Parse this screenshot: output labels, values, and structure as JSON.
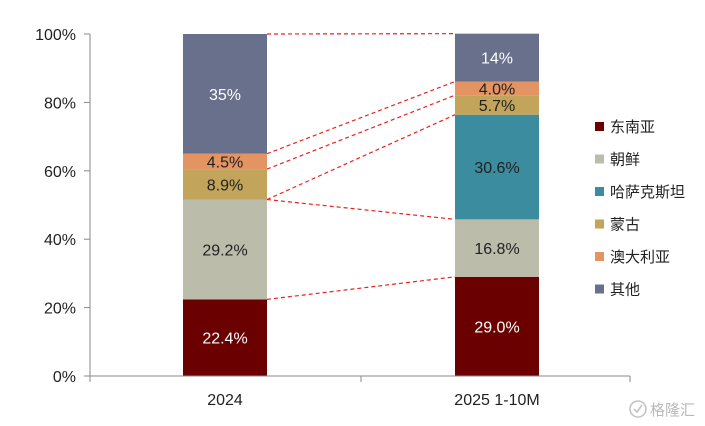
{
  "chart_data": {
    "type": "bar",
    "stacked": true,
    "percent": true,
    "categories": [
      "2024",
      "2025 1-10M"
    ],
    "ylim": [
      0,
      100
    ],
    "yticks": [
      "0%",
      "20%",
      "40%",
      "60%",
      "80%",
      "100%"
    ],
    "series": [
      {
        "name": "东南亚",
        "color": "#6b0000",
        "label_color": "#ffffff",
        "values": [
          22.4,
          29.0
        ],
        "labels": [
          "22.4%",
          "29.0%"
        ]
      },
      {
        "name": "朝鲜",
        "color": "#bcbcab",
        "label_color": "#222222",
        "values": [
          29.2,
          16.8
        ],
        "labels": [
          "29.2%",
          "16.8%"
        ]
      },
      {
        "name": "哈萨克斯坦",
        "color": "#3a8c9e",
        "label_color": "#222222",
        "values": [
          0,
          30.6
        ],
        "labels": [
          "",
          "30.6%"
        ]
      },
      {
        "name": "蒙古",
        "color": "#c2a45a",
        "label_color": "#222222",
        "values": [
          8.9,
          5.7
        ],
        "labels": [
          "8.9%",
          "5.7%"
        ]
      },
      {
        "name": "澳大利亚",
        "color": "#e39462",
        "label_color": "#222222",
        "values": [
          4.5,
          4.0
        ],
        "labels": [
          "4.5%",
          "4.0%"
        ]
      },
      {
        "name": "其他",
        "color": "#68708c",
        "label_color": "#ffffff",
        "values": [
          35,
          14
        ],
        "labels": [
          "35%",
          "14%"
        ]
      }
    ],
    "connector_color": "#e8231f",
    "legend_position": "right"
  },
  "watermark": "格隆汇"
}
